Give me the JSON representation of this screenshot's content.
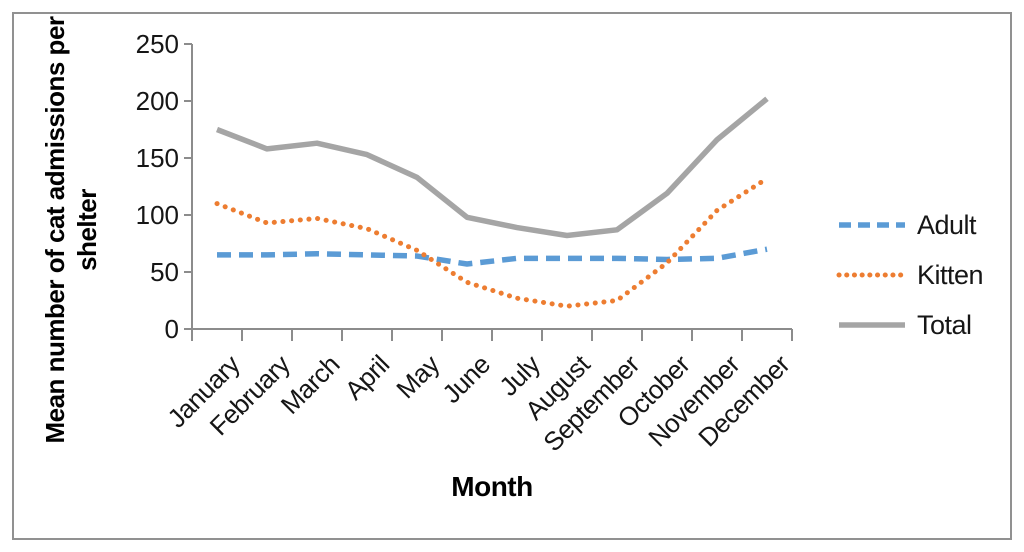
{
  "figure": {
    "border_color": "#919191",
    "background": "#ffffff",
    "axis_color": "#8c8c8c",
    "text_color": "#161616"
  },
  "chart_data": {
    "type": "line",
    "title": "",
    "xlabel": "Month",
    "ylabel": "Mean number of cat admissions per shelter",
    "categories": [
      "January",
      "February",
      "March",
      "April",
      "May",
      "June",
      "July",
      "August",
      "September",
      "October",
      "November",
      "December"
    ],
    "yticks": [
      0,
      50,
      100,
      150,
      200,
      250
    ],
    "ylim": [
      0,
      250
    ],
    "grid": false,
    "legend_position": "right",
    "series": [
      {
        "name": "Adult",
        "color": "#5B9BD5",
        "line_style": "dashed",
        "values": [
          65,
          65,
          66,
          65,
          64,
          57,
          62,
          62,
          62,
          61,
          62,
          70
        ]
      },
      {
        "name": "Kitten",
        "color": "#ED7D31",
        "line_style": "dotted",
        "values": [
          110,
          93,
          97,
          88,
          69,
          41,
          27,
          20,
          25,
          58,
          104,
          132
        ]
      },
      {
        "name": "Total",
        "color": "#A5A5A5",
        "line_style": "solid",
        "values": [
          175,
          158,
          163,
          153,
          133,
          98,
          89,
          82,
          87,
          119,
          166,
          202
        ]
      }
    ]
  }
}
